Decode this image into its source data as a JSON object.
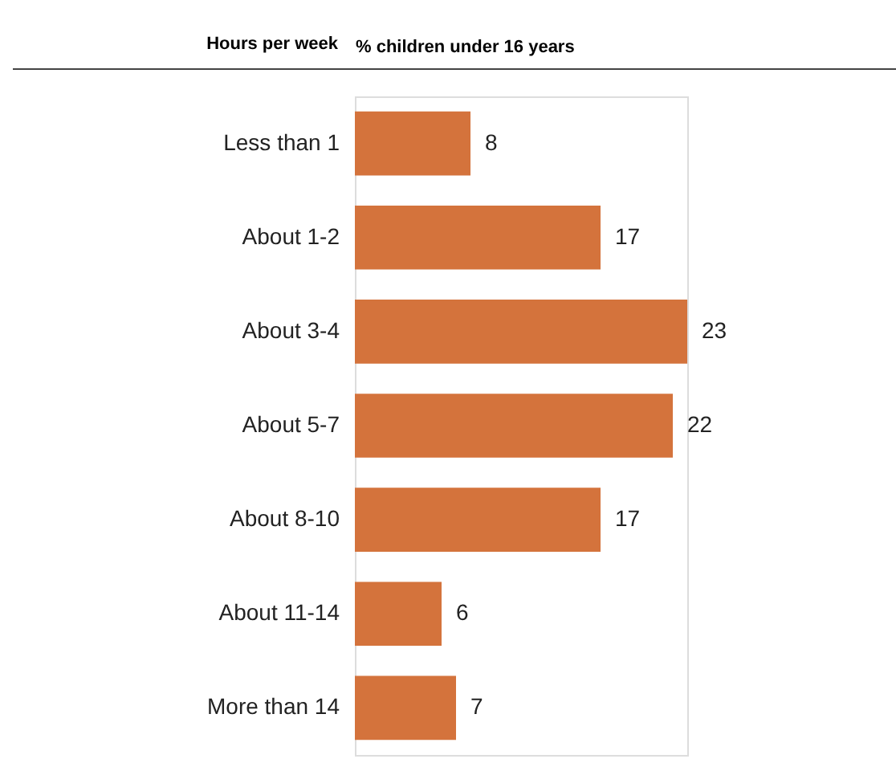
{
  "chart_data": {
    "type": "bar",
    "orientation": "horizontal",
    "ylabel": "Hours per week",
    "xlabel": "% children under 16 years",
    "categories": [
      "Less than 1",
      "About 1-2",
      "About 3-4",
      "About 5-7",
      "About 8-10",
      "About 11-14",
      "More than 14"
    ],
    "values": [
      8,
      17,
      23,
      22,
      17,
      6,
      7
    ],
    "color": "#d4733c",
    "data_labels": true,
    "grid": false
  }
}
